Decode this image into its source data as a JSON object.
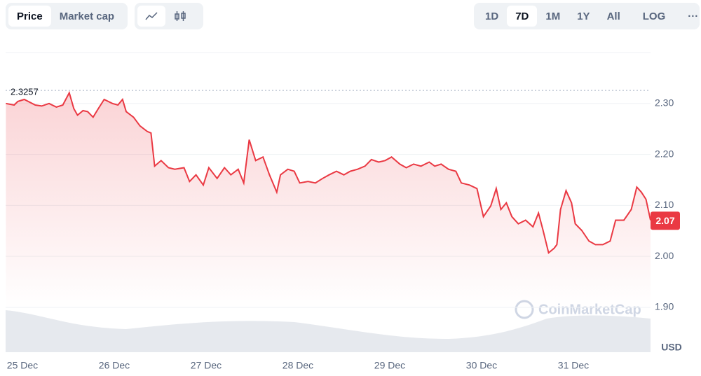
{
  "ui": {
    "tabs": [
      "Price",
      "Market cap"
    ],
    "ranges": [
      "1D",
      "7D",
      "1M",
      "1Y",
      "All",
      "LOG"
    ],
    "more": "···"
  },
  "chart_data": {
    "type": "line",
    "color": "#ea3943",
    "x": [
      -0.18,
      -0.09,
      -0.05,
      0.02,
      0.14,
      0.21,
      0.29,
      0.37,
      0.44,
      0.51,
      0.56,
      0.6,
      0.66,
      0.71,
      0.77,
      0.82,
      0.89,
      0.98,
      1.04,
      1.09,
      1.13,
      1.21,
      1.28,
      1.36,
      1.4,
      1.44,
      1.51,
      1.59,
      1.66,
      1.76,
      1.82,
      1.89,
      1.97,
      2.03,
      2.12,
      2.2,
      2.27,
      2.35,
      2.41,
      2.47,
      2.54,
      2.62,
      2.69,
      2.77,
      2.81,
      2.89,
      2.96,
      3.02,
      3.11,
      3.19,
      3.27,
      3.34,
      3.42,
      3.5,
      3.57,
      3.65,
      3.73,
      3.8,
      3.88,
      3.95,
      4.02,
      4.11,
      4.18,
      4.26,
      4.34,
      4.43,
      4.49,
      4.56,
      4.64,
      4.72,
      4.78,
      4.87,
      4.95,
      5.02,
      5.1,
      5.16,
      5.21,
      5.27,
      5.33,
      5.4,
      5.48,
      5.56,
      5.62,
      5.67,
      5.73,
      5.79,
      5.82,
      5.86,
      5.92,
      5.98,
      6.02,
      6.09,
      6.17,
      6.24,
      6.32,
      6.4,
      6.46,
      6.55,
      6.63,
      6.69,
      6.74,
      6.79,
      6.84
    ],
    "values": [
      2.3,
      2.297,
      2.304,
      2.308,
      2.297,
      2.295,
      2.3,
      2.293,
      2.297,
      2.321,
      2.29,
      2.277,
      2.286,
      2.284,
      2.273,
      2.288,
      2.308,
      2.3,
      2.297,
      2.308,
      2.284,
      2.273,
      2.256,
      2.245,
      2.242,
      2.177,
      2.188,
      2.174,
      2.171,
      2.174,
      2.147,
      2.16,
      2.14,
      2.174,
      2.153,
      2.174,
      2.16,
      2.171,
      2.144,
      2.229,
      2.188,
      2.195,
      2.16,
      2.126,
      2.16,
      2.171,
      2.167,
      2.144,
      2.147,
      2.144,
      2.153,
      2.16,
      2.167,
      2.16,
      2.167,
      2.171,
      2.177,
      2.19,
      2.185,
      2.188,
      2.195,
      2.181,
      2.174,
      2.181,
      2.177,
      2.185,
      2.177,
      2.181,
      2.171,
      2.167,
      2.144,
      2.14,
      2.133,
      2.078,
      2.099,
      2.133,
      2.092,
      2.105,
      2.078,
      2.064,
      2.071,
      2.058,
      2.085,
      2.051,
      2.007,
      2.016,
      2.023,
      2.092,
      2.129,
      2.105,
      2.064,
      2.051,
      2.03,
      2.023,
      2.023,
      2.03,
      2.071,
      2.071,
      2.092,
      2.136,
      2.126,
      2.112,
      2.071
    ],
    "xlim": [
      -0.183,
      6.84
    ],
    "xticks": [
      {
        "value": 0,
        "label": "25 Dec"
      },
      {
        "value": 1,
        "label": "26 Dec"
      },
      {
        "value": 2,
        "label": "27 Dec"
      },
      {
        "value": 3,
        "label": "28 Dec"
      },
      {
        "value": 4,
        "label": "29 Dec"
      },
      {
        "value": 5,
        "label": "30 Dec"
      },
      {
        "value": 6,
        "label": "31 Dec"
      }
    ],
    "ylim": [
      1.812,
      2.4
    ],
    "yticks": [
      {
        "value": 1.9,
        "label": "1.90"
      },
      {
        "value": 2.0,
        "label": "2.00"
      },
      {
        "value": 2.1,
        "label": "2.10"
      },
      {
        "value": 2.2,
        "label": "2.20"
      },
      {
        "value": 2.3,
        "label": "2.30"
      }
    ],
    "grid": true,
    "high": 2.3257,
    "current": {
      "value": 2.07,
      "label": "2.07"
    },
    "unit": "USD",
    "watermark": "CoinMarketCap"
  }
}
